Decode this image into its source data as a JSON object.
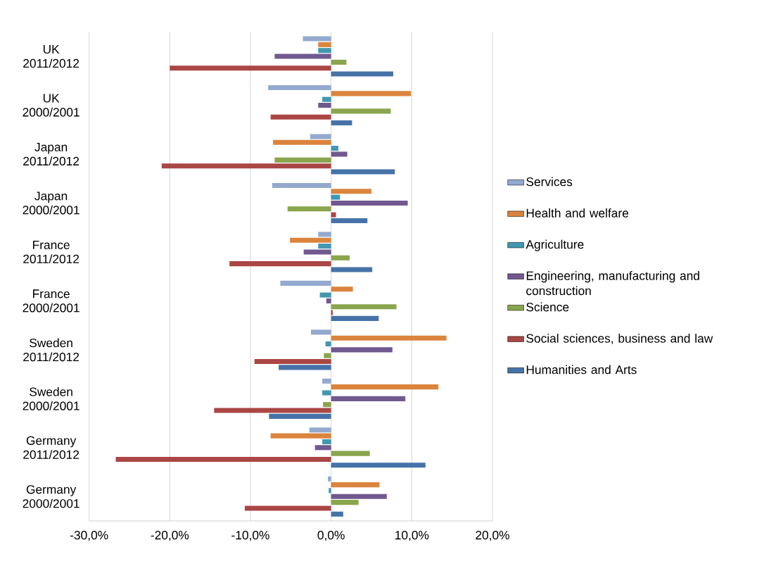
{
  "chart_data": {
    "type": "bar",
    "orientation": "horizontal",
    "categories": [
      "UK 2011/2012",
      "UK 2000/2001",
      "Japan 2011/2012",
      "Japan 2000/2001",
      "France 2011/2012",
      "France 2000/2001",
      "Sweden 2011/2012",
      "Sweden 2000/2001",
      "Germany 2011/2012",
      "Germany 2000/2001"
    ],
    "series": [
      {
        "name": "Services",
        "color": "#93a9cf",
        "values": [
          -3.5,
          -7.8,
          -2.6,
          -7.3,
          -1.6,
          -6.3,
          -2.5,
          -1.1,
          -2.7,
          -0.4
        ]
      },
      {
        "name": "Health and welfare",
        "color": "#db843d",
        "values": [
          -1.6,
          9.9,
          -7.2,
          5.0,
          -5.1,
          2.7,
          14.3,
          13.3,
          -7.5,
          6.0
        ]
      },
      {
        "name": "Agriculture",
        "color": "#4198af",
        "values": [
          -1.6,
          -1.1,
          0.9,
          1.1,
          -1.6,
          -1.4,
          -0.7,
          -1.1,
          -1.1,
          -0.3
        ]
      },
      {
        "name": "Engineering, manufacturing and construction",
        "color": "#71588f",
        "values": [
          -7.0,
          -1.6,
          2.0,
          9.5,
          -3.4,
          -0.6,
          7.6,
          9.2,
          -2.0,
          6.9
        ]
      },
      {
        "name": "Science",
        "color": "#89a54e",
        "values": [
          1.9,
          7.4,
          -7.0,
          -5.4,
          2.3,
          8.1,
          -0.9,
          -1.0,
          4.8,
          3.4
        ]
      },
      {
        "name": "Social sciences, business and law",
        "color": "#aa4644",
        "values": [
          -20.0,
          -7.5,
          -21.0,
          0.6,
          -12.6,
          0.2,
          -9.5,
          -14.5,
          -26.7,
          -10.7
        ]
      },
      {
        "name": "Humanities and Arts",
        "color": "#4672a8",
        "values": [
          7.7,
          2.6,
          7.9,
          4.5,
          5.1,
          5.9,
          -6.5,
          -7.7,
          11.7,
          1.5
        ]
      }
    ],
    "xlim": [
      -30,
      20
    ],
    "xticks": [
      {
        "value": -30,
        "label": "-30,0%"
      },
      {
        "value": -20,
        "label": "-20,0%"
      },
      {
        "value": -10,
        "label": "-10,0%"
      },
      {
        "value": 0,
        "label": "0,0%"
      },
      {
        "value": 10,
        "label": "10,0%"
      },
      {
        "value": 20,
        "label": "20,0%"
      }
    ],
    "grid": "x",
    "legend": "right"
  }
}
